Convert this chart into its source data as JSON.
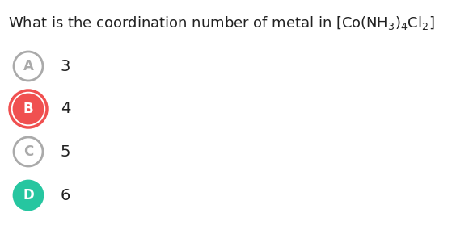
{
  "background_color": "#ffffff",
  "title": "What is the coordination number of metal in [Co(NH$_3)_4$Cl$_2$]",
  "options": [
    {
      "label": "A",
      "value": "3",
      "circle_fill": "#ffffff",
      "circle_edge": "#aaaaaa",
      "text_color": "#aaaaaa",
      "double_ring": false
    },
    {
      "label": "B",
      "value": "4",
      "circle_fill": "#f05050",
      "circle_edge": "#f05050",
      "text_color": "#ffffff",
      "double_ring": true
    },
    {
      "label": "C",
      "value": "5",
      "circle_fill": "#ffffff",
      "circle_edge": "#aaaaaa",
      "text_color": "#aaaaaa",
      "double_ring": false
    },
    {
      "label": "D",
      "value": "6",
      "circle_fill": "#26c6a0",
      "circle_edge": "#26c6a0",
      "text_color": "#ffffff",
      "double_ring": false
    }
  ],
  "title_fontsize": 13,
  "option_label_fontsize": 12,
  "option_value_fontsize": 14,
  "fig_width": 5.59,
  "fig_height": 2.95,
  "dpi": 100
}
